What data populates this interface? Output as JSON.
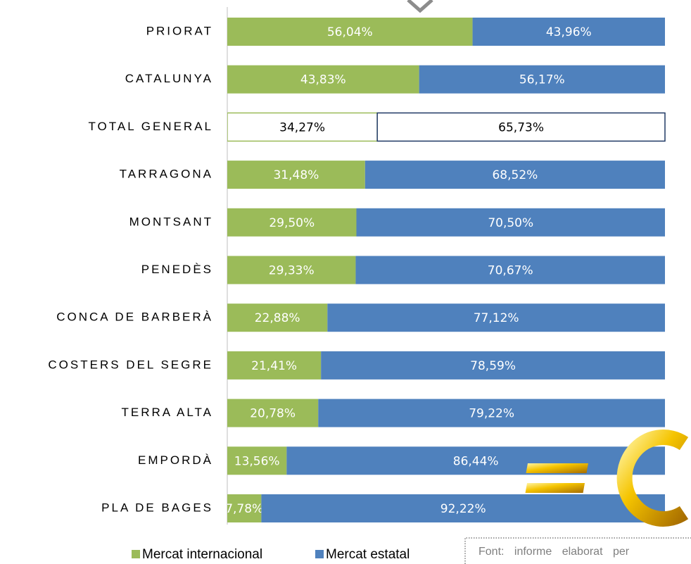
{
  "chart_data": {
    "type": "stacked_bar_horizontal",
    "categories": [
      "PRIORAT",
      "CATALUNYA",
      "TOTAL GENERAL",
      "TARRAGONA",
      "MONTSANT",
      "PENEDÈS",
      "CONCA DE BARBERÀ",
      "COSTERS DEL SEGRE",
      "TERRA ALTA",
      "EMPORDÀ",
      "PLA DE BAGES"
    ],
    "series": [
      {
        "name": "Mercat internacional",
        "color": "#9bbb59",
        "values": [
          56.04,
          43.83,
          34.27,
          31.48,
          29.5,
          29.33,
          22.88,
          21.41,
          20.78,
          13.56,
          7.78
        ],
        "value_labels": [
          "56,04%",
          "43,83%",
          "34,27%",
          "31,48%",
          "29,50%",
          "29,33%",
          "22,88%",
          "21,41%",
          "20,78%",
          "13,56%",
          "7,78%"
        ]
      },
      {
        "name": "Mercat estatal",
        "color": "#4f81bd",
        "values": [
          43.96,
          56.17,
          65.73,
          68.52,
          70.5,
          70.67,
          77.12,
          78.59,
          79.22,
          86.44,
          92.22
        ],
        "value_labels": [
          "43,96%",
          "56,17%",
          "65,73%",
          "68,52%",
          "70,50%",
          "70,67%",
          "77,12%",
          "78,59%",
          "79,22%",
          "86,44%",
          "92,22%"
        ]
      }
    ],
    "highlight": "TOTAL GENERAL",
    "xlim": [
      0,
      100
    ],
    "legend": "bottom"
  },
  "source": "Font: informe elaborat per"
}
